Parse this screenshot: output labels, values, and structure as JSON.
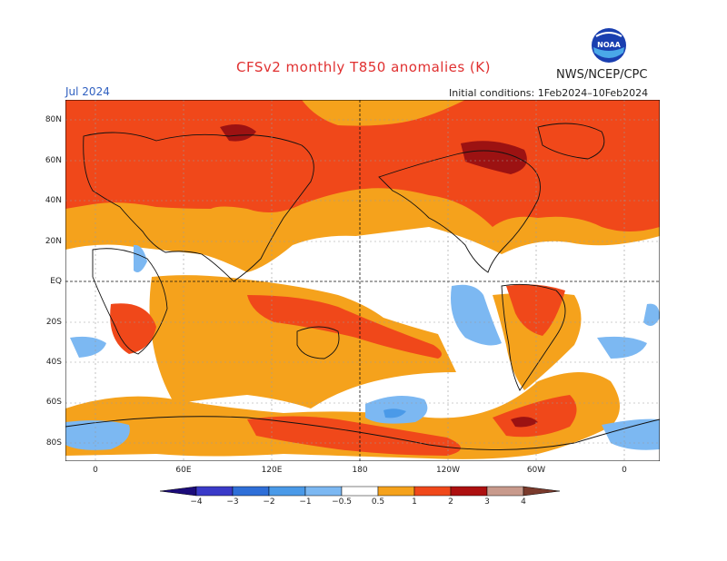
{
  "title": "CFSv2 monthly T850 anomalies (K)",
  "agency": "NWS/NCEP/CPC",
  "logo_text": "NOAA",
  "month": "Jul 2024",
  "initial_conditions": "Initial conditions: 1Feb2024–10Feb2024",
  "lat_labels": [
    "80N",
    "60N",
    "40N",
    "20N",
    "EQ",
    "20S",
    "40S",
    "60S",
    "80S"
  ],
  "lon_labels": [
    "0",
    "60E",
    "120E",
    "180",
    "120W",
    "60W",
    "0"
  ],
  "colorbar": {
    "labels": [
      "−4",
      "−3",
      "−2",
      "−1",
      "−0.5",
      "0.5",
      "1",
      "2",
      "3",
      "4"
    ],
    "colors": [
      "#1c0c7a",
      "#3a3ac8",
      "#2f6fd8",
      "#4a9ae8",
      "#7cb8f2",
      "#ffffff",
      "#f5a21c",
      "#f0481a",
      "#ad1010",
      "#c89a8c",
      "#7a3a2c"
    ]
  },
  "anomaly_colors": {
    "weak_warm": "#f5a21c",
    "warm": "#f0481a",
    "strong_warm": "#9c1212",
    "weak_cool": "#7cb8f2",
    "cool": "#4a9ae8"
  }
}
